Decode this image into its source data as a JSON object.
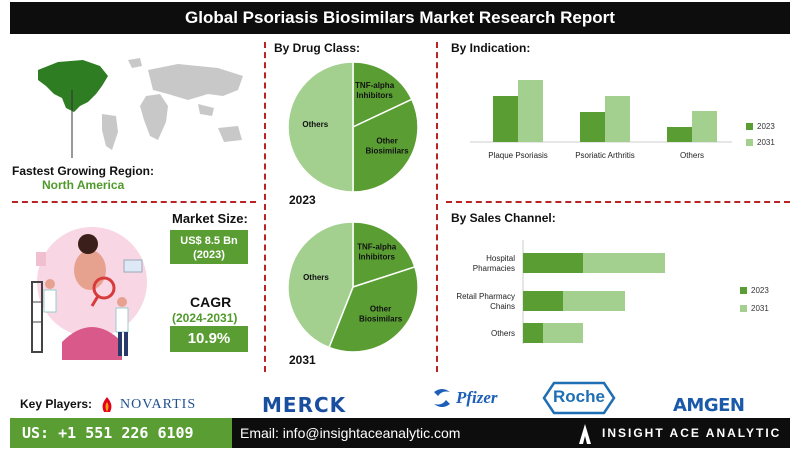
{
  "header": {
    "title": "Global Psoriasis Biosimilars Market  Research Report"
  },
  "region": {
    "label": "Fastest Growing Region:",
    "value": "North America"
  },
  "market_size": {
    "label": "Market Size:",
    "value": "US$ 8.5 Bn",
    "year": "(2023)"
  },
  "cagr": {
    "label": "CAGR",
    "period": "(2024-2031)",
    "value": "10.9%"
  },
  "sections": {
    "drug_class": "By Drug Class:",
    "indication": "By Indication:",
    "sales_channel": "By Sales Channel:"
  },
  "colors": {
    "dark_green": "#5a9e33",
    "light_green": "#a3d08f",
    "title_bg": "#0d0d0d",
    "divider": "#b22222",
    "map_highlight": "#2e7d22",
    "map_gray": "#c8c8c8"
  },
  "key_players": {
    "label": "Key Players:",
    "logos": [
      {
        "name": "NOVARTIS",
        "color": "#1f4f8f",
        "icon": "novartis-flame-icon"
      },
      {
        "name": "MERCK",
        "color": "#1a4fa0",
        "icon": "merck-wordmark"
      },
      {
        "name": "Pfizer",
        "color": "#1d5eb8",
        "icon": "pfizer-swirl-icon"
      },
      {
        "name": "Roche",
        "color": "#1f6fb5",
        "icon": "roche-hexagon-icon"
      },
      {
        "name": "AMGEN",
        "color": "#1a5aa8",
        "icon": "amgen-wordmark"
      }
    ]
  },
  "contact": {
    "phone": "US: +1 551 226 6109",
    "email": "Email: info@insightaceanalytic.com",
    "brand": "INSIGHT ACE ANALYTIC"
  },
  "chart_data": [
    {
      "type": "pie",
      "title": "By Drug Class:",
      "year_label": "2023",
      "labels": [
        "TNF-alpha Inhibitors",
        "Other Biosimilars",
        "Others"
      ],
      "values": [
        18,
        32,
        50
      ]
    },
    {
      "type": "pie",
      "title": "By Drug Class:",
      "year_label": "2031",
      "labels": [
        "TNF-alpha Inhibitors",
        "Other Biosimilars",
        "Others"
      ],
      "values": [
        20,
        36,
        44
      ]
    },
    {
      "type": "bar",
      "title": "By Indication:",
      "categories": [
        "Plaque Psoriasis",
        "Psoriatic Arthritis",
        "Others"
      ],
      "series": [
        {
          "name": "2023",
          "values": [
            46,
            30,
            15
          ]
        },
        {
          "name": "2031",
          "values": [
            62,
            46,
            31
          ]
        }
      ],
      "grid": false,
      "legend": "right"
    },
    {
      "type": "bar",
      "orientation": "horizontal",
      "stacked": true,
      "title": "By Sales Channel:",
      "categories": [
        "Hospital Pharmacies",
        "Retail Pharmacy Chains",
        "Others"
      ],
      "series": [
        {
          "name": "2023",
          "values": [
            30,
            20,
            10
          ]
        },
        {
          "name": "2031",
          "values": [
            41,
            31,
            20
          ]
        }
      ],
      "grid": false,
      "legend": "right"
    }
  ]
}
